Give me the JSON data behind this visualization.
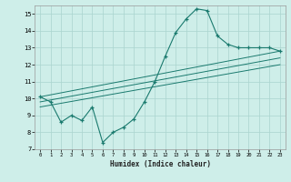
{
  "xlabel": "Humidex (Indice chaleur)",
  "background_color": "#ceeee9",
  "grid_color": "#aad4ce",
  "line_color": "#1a7a6e",
  "xlim": [
    -0.5,
    23.5
  ],
  "ylim": [
    7,
    15.5
  ],
  "yticks": [
    7,
    8,
    9,
    10,
    11,
    12,
    13,
    14,
    15
  ],
  "xticks": [
    0,
    1,
    2,
    3,
    4,
    5,
    6,
    7,
    8,
    9,
    10,
    11,
    12,
    13,
    14,
    15,
    16,
    17,
    18,
    19,
    20,
    21,
    22,
    23
  ],
  "main_x": [
    0,
    1,
    2,
    3,
    4,
    5,
    6,
    7,
    8,
    9,
    10,
    11,
    12,
    13,
    14,
    15,
    16,
    17,
    18,
    19,
    20,
    21,
    22,
    23
  ],
  "main_y": [
    10.1,
    9.8,
    8.6,
    9.0,
    8.7,
    9.5,
    7.4,
    8.0,
    8.3,
    8.8,
    9.8,
    11.0,
    12.5,
    13.9,
    14.7,
    15.3,
    15.2,
    13.7,
    13.2,
    13.0,
    13.0,
    13.0,
    13.0,
    12.8
  ],
  "trend_lines": [
    {
      "x": [
        0,
        23
      ],
      "y": [
        9.5,
        12.0
      ]
    },
    {
      "x": [
        0,
        23
      ],
      "y": [
        9.8,
        12.4
      ]
    },
    {
      "x": [
        0,
        23
      ],
      "y": [
        10.1,
        12.8
      ]
    }
  ]
}
